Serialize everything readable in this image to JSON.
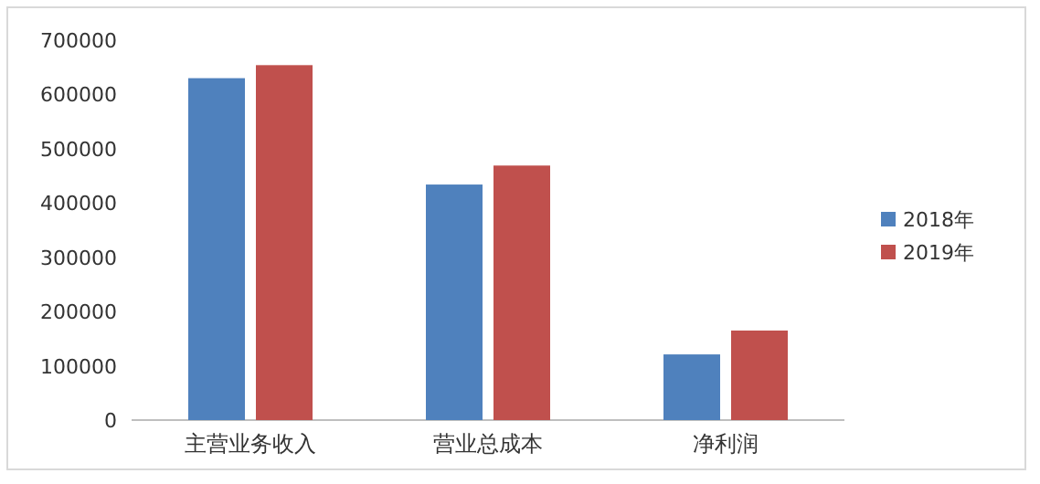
{
  "chart_data": {
    "type": "bar",
    "categories": [
      "主营业务收入",
      "营业总成本",
      "净利润"
    ],
    "series": [
      {
        "name": "2018年",
        "color": "#4f81bd",
        "values": [
          630000,
          434000,
          121000
        ]
      },
      {
        "name": "2019年",
        "color": "#c0504d",
        "values": [
          654000,
          469000,
          165000
        ]
      }
    ],
    "ylim": [
      0,
      700000
    ],
    "yticks": [
      0,
      100000,
      200000,
      300000,
      400000,
      500000,
      600000,
      700000
    ],
    "legend": "right"
  }
}
